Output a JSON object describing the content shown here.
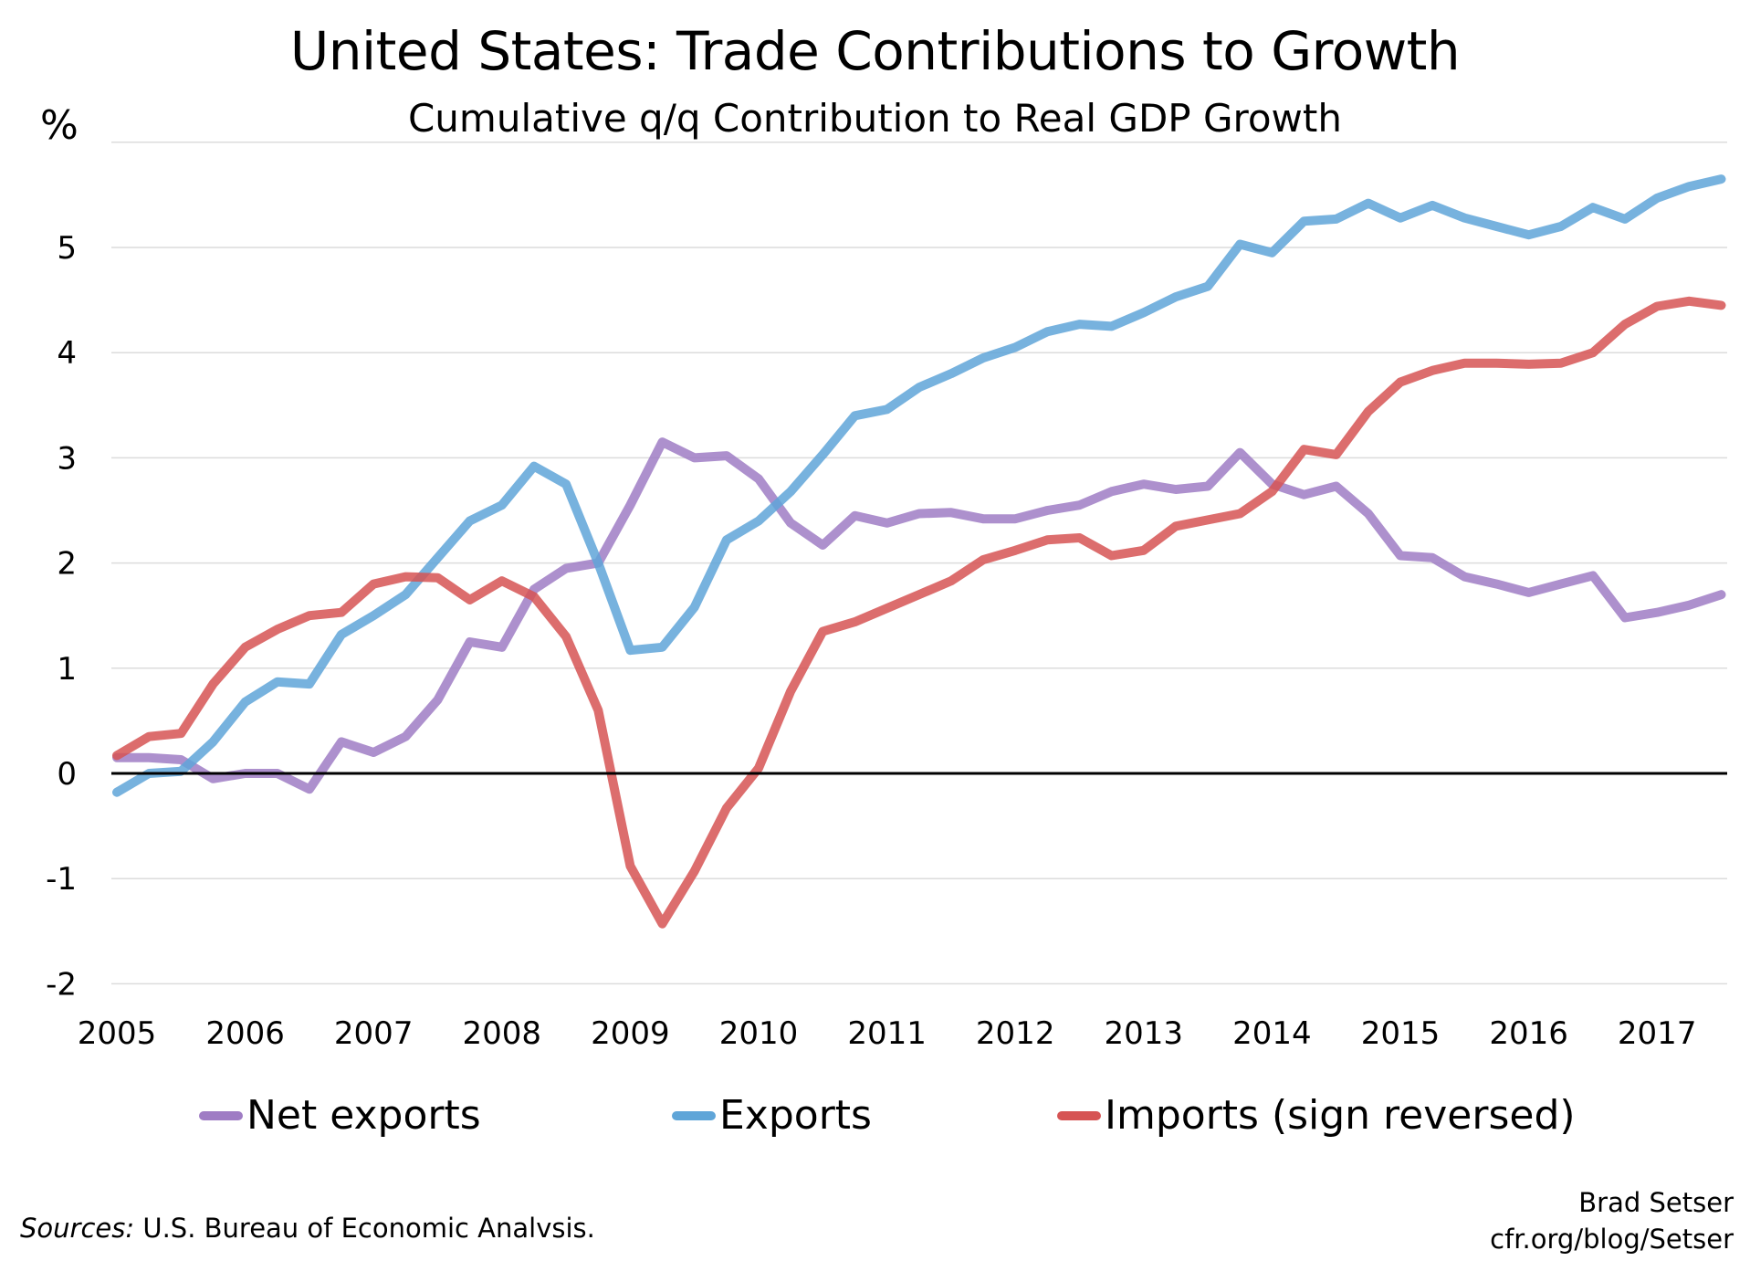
{
  "chart_data": {
    "type": "line",
    "title": "United States: Trade Contributions to Growth",
    "subtitle": "Cumulative q/q Contribution to Real GDP Growth",
    "ylabel": "%",
    "ylim": [
      -2,
      6
    ],
    "yticks": [
      "-2",
      "-1",
      "0",
      "1",
      "2",
      "3",
      "4",
      "5"
    ],
    "xlim": [
      2005,
      2017.6
    ],
    "xticks": [
      "2005",
      "2006",
      "2007",
      "2008",
      "2009",
      "2010",
      "2011",
      "2012",
      "2013",
      "2014",
      "2015",
      "2016",
      "2017"
    ],
    "x_start": 2005,
    "x_step_quarters": 1,
    "grid": true,
    "legend_placement": "bottom",
    "series": [
      {
        "name": "Net exports",
        "color": "#9f7cc4",
        "values": [
          0.15,
          0.15,
          0.13,
          -0.05,
          0,
          0,
          -0.15,
          0.3,
          0.2,
          0.35,
          0.7,
          1.25,
          1.2,
          1.75,
          1.95,
          2.0,
          2.55,
          3.15,
          3.0,
          3.02,
          2.8,
          2.38,
          2.17,
          2.45,
          2.38,
          2.47,
          2.48,
          2.42,
          2.42,
          2.5,
          2.55,
          2.68,
          2.75,
          2.7,
          2.73,
          3.05,
          2.75,
          2.65,
          2.73,
          2.47,
          2.07,
          2.05,
          1.87,
          1.8,
          1.72,
          1.8,
          1.88,
          1.48,
          1.53,
          1.6,
          1.7
        ]
      },
      {
        "name": "Exports",
        "color": "#5fa5d8",
        "values": [
          -0.18,
          0,
          0.02,
          0.3,
          0.68,
          0.87,
          0.85,
          1.32,
          1.5,
          1.7,
          2.05,
          2.4,
          2.55,
          2.92,
          2.75,
          2.0,
          1.17,
          1.2,
          1.58,
          2.22,
          2.4,
          2.68,
          3.03,
          3.4,
          3.46,
          3.67,
          3.8,
          3.95,
          4.05,
          4.2,
          4.27,
          4.25,
          4.38,
          4.53,
          4.63,
          5.03,
          4.95,
          5.25,
          5.27,
          5.42,
          5.28,
          5.4,
          5.28,
          5.2,
          5.12,
          5.2,
          5.38,
          5.27,
          5.47,
          5.58,
          5.65
        ]
      },
      {
        "name": "Imports (sign reversed)",
        "color": "#d65454",
        "values": [
          0.17,
          0.35,
          0.38,
          0.85,
          1.2,
          1.37,
          1.5,
          1.53,
          1.8,
          1.87,
          1.86,
          1.65,
          1.83,
          1.68,
          1.3,
          0.6,
          -0.88,
          -1.43,
          -0.93,
          -0.33,
          0.05,
          0.78,
          1.35,
          1.44,
          1.57,
          1.7,
          1.83,
          2.03,
          2.12,
          2.22,
          2.24,
          2.07,
          2.12,
          2.35,
          2.41,
          2.47,
          2.68,
          3.08,
          3.03,
          3.44,
          3.72,
          3.83,
          3.9,
          3.9,
          3.89,
          3.9,
          4.0,
          4.27,
          4.44,
          4.49,
          4.45
        ]
      }
    ]
  },
  "footer": {
    "sources_label": "Sources:",
    "sources_text": " U.S. Bureau of Economic Analvsis.",
    "author": "Brad Setser",
    "url": "cfr.org/blog/Setser"
  }
}
